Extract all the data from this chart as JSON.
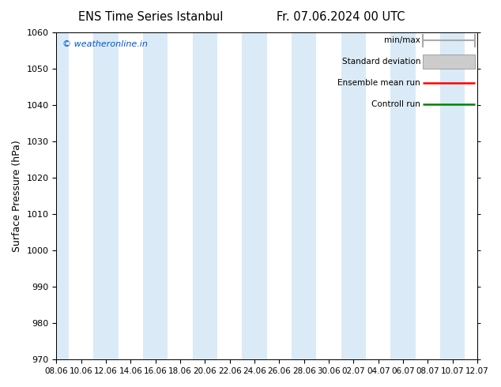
{
  "title_left": "ENS Time Series Istanbul",
  "title_right": "Fr. 07.06.2024 00 UTC",
  "ylabel": "Surface Pressure (hPa)",
  "ylim": [
    970,
    1060
  ],
  "yticks": [
    970,
    980,
    990,
    1000,
    1010,
    1020,
    1030,
    1040,
    1050,
    1060
  ],
  "xtick_labels": [
    "08.06",
    "10.06",
    "12.06",
    "14.06",
    "16.06",
    "18.06",
    "20.06",
    "22.06",
    "24.06",
    "26.06",
    "28.06",
    "30.06",
    "02.07",
    "04.07",
    "06.07",
    "08.07",
    "10.07",
    "12.07"
  ],
  "watermark": "© weatheronline.in",
  "watermark_color": "#0055cc",
  "bg_color": "#ffffff",
  "plot_bg_color": "#ffffff",
  "band_color": "#daeaf7",
  "legend_items": [
    {
      "label": "min/max",
      "color": "#aaaaaa",
      "style": "line_with_caps"
    },
    {
      "label": "Standard deviation",
      "color": "#cccccc",
      "style": "filled_bar"
    },
    {
      "label": "Ensemble mean run",
      "color": "#ff0000",
      "style": "line"
    },
    {
      "label": "Controll run",
      "color": "#008000",
      "style": "line"
    }
  ],
  "figsize": [
    6.34,
    4.9
  ],
  "dpi": 100
}
